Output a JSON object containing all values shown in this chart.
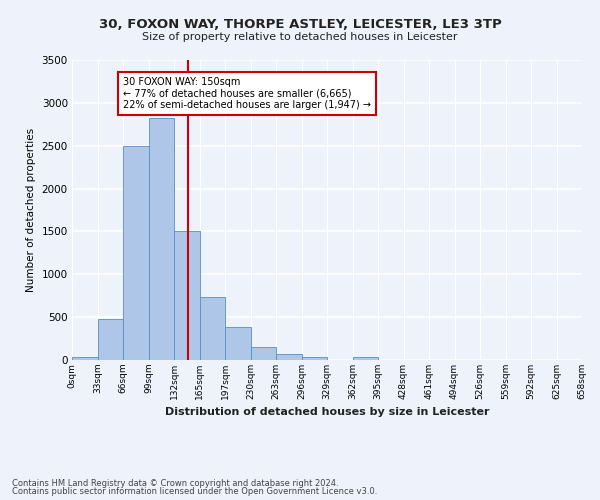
{
  "title_line1": "30, FOXON WAY, THORPE ASTLEY, LEICESTER, LE3 3TP",
  "title_line2": "Size of property relative to detached houses in Leicester",
  "xlabel": "Distribution of detached houses by size in Leicester",
  "ylabel": "Number of detached properties",
  "bin_labels": [
    "0sqm",
    "33sqm",
    "66sqm",
    "99sqm",
    "132sqm",
    "165sqm",
    "197sqm",
    "230sqm",
    "263sqm",
    "296sqm",
    "329sqm",
    "362sqm",
    "395sqm",
    "428sqm",
    "461sqm",
    "494sqm",
    "526sqm",
    "559sqm",
    "592sqm",
    "625sqm",
    "658sqm"
  ],
  "bar_values": [
    30,
    480,
    2500,
    2820,
    1500,
    730,
    390,
    150,
    70,
    40,
    0,
    40,
    0,
    0,
    0,
    0,
    0,
    0,
    0,
    0
  ],
  "bar_color": "#aec6e8",
  "bar_edge_color": "#5a8fc2",
  "annotation_box_text": "30 FOXON WAY: 150sqm\n← 77% of detached houses are smaller (6,665)\n22% of semi-detached houses are larger (1,947) →",
  "vline_color": "#cc0000",
  "ylim": [
    0,
    3500
  ],
  "yticks": [
    0,
    500,
    1000,
    1500,
    2000,
    2500,
    3000,
    3500
  ],
  "footer_line1": "Contains HM Land Registry data © Crown copyright and database right 2024.",
  "footer_line2": "Contains public sector information licensed under the Open Government Licence v3.0.",
  "background_color": "#eef2fb",
  "plot_background": "#eef2fb",
  "grid_color": "#ffffff",
  "annotation_box_color": "#ffffff",
  "annotation_box_edge": "#cc0000",
  "num_bins": 20,
  "title1_fontsize": 9.5,
  "title2_fontsize": 8.0,
  "ylabel_fontsize": 7.5,
  "xlabel_fontsize": 8.0,
  "ytick_fontsize": 7.5,
  "xtick_fontsize": 6.5,
  "footer_fontsize": 6.0
}
